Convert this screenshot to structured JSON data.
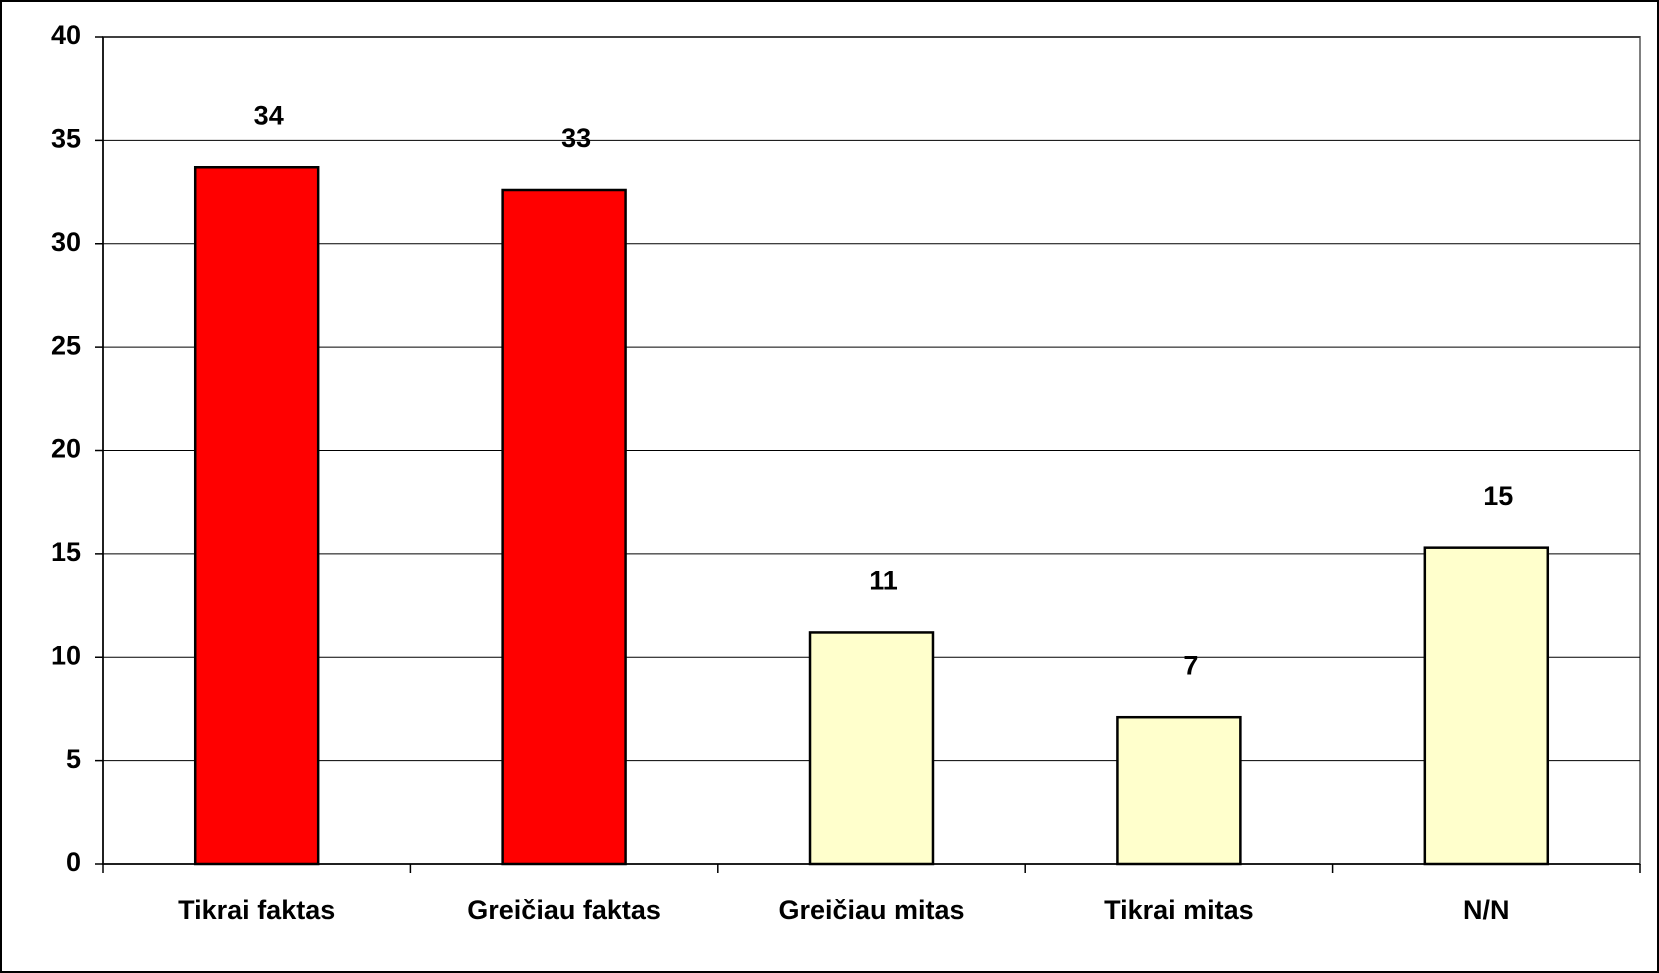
{
  "chart_data": {
    "type": "bar",
    "categories": [
      "Tikrai faktas",
      "Greičiau faktas",
      "Greičiau mitas",
      "Tikrai mitas",
      "N/N"
    ],
    "values": [
      33.7,
      32.6,
      11.2,
      7.1,
      15.3
    ],
    "value_labels": [
      "34",
      "33",
      "11",
      "7",
      "15"
    ],
    "colors": [
      "#ff0000",
      "#ff0000",
      "#ffffcc",
      "#ffffcc",
      "#ffffcc"
    ],
    "ylim": [
      0,
      40
    ],
    "yticks": [
      0,
      5,
      10,
      15,
      20,
      25,
      30,
      35,
      40
    ],
    "grid": true
  }
}
